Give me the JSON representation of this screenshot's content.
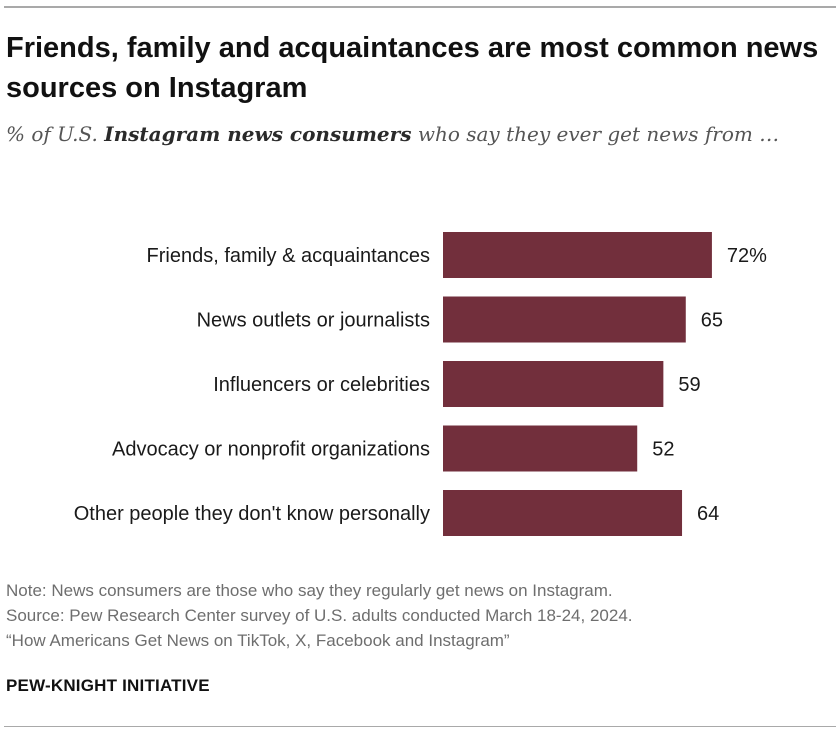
{
  "chart_data": {
    "type": "bar",
    "orientation": "horizontal",
    "title": "Friends, family and acquaintances are most common news sources on Instagram",
    "subtitle": {
      "prefix": "% of U.S. ",
      "emphasis": "Instagram news consumers",
      "suffix": " who say they ever get news from …"
    },
    "categories": [
      "Friends, family & acquaintances",
      "News outlets or journalists",
      "Influencers or celebrities",
      "Advocacy or nonprofit organizations",
      "Other people they don't know personally"
    ],
    "values": [
      72,
      65,
      59,
      52,
      64
    ],
    "value_labels": [
      "72%",
      "65",
      "59",
      "52",
      "64"
    ],
    "xlim": [
      0,
      100
    ],
    "bar_color": "#722f3c",
    "grid": false,
    "legend": "none"
  },
  "notes": {
    "note": "Note: News consumers are those who say they regularly get news on Instagram.",
    "source": "Source: Pew Research Center survey of U.S. adults conducted March 18-24, 2024.",
    "report": "“How Americans Get News on TikTok, X, Facebook and Instagram”"
  },
  "brand": "PEW-KNIGHT INITIATIVE"
}
